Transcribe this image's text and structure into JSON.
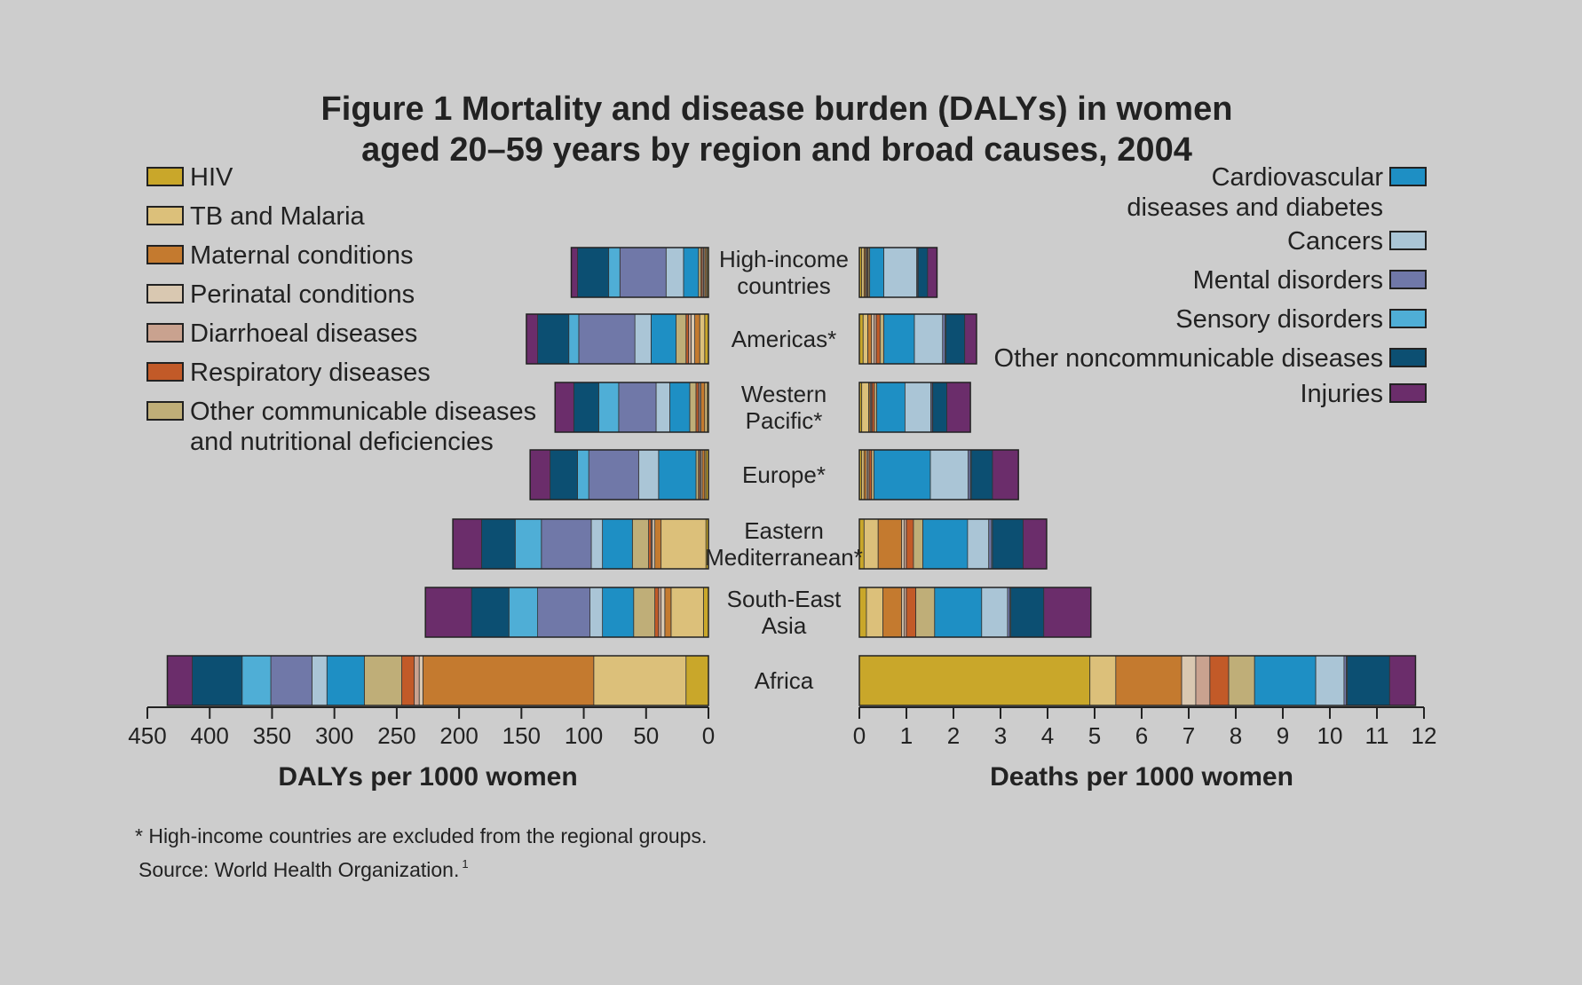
{
  "chart_data": {
    "type": "bar",
    "orientation": "horizontal",
    "stacked": true,
    "title_lines": [
      "Figure 1 Mortality and disease burden (DALYs) in women",
      "aged 20–59 years by region and broad causes, 2004"
    ],
    "categories": [
      [
        "High-income",
        "countries"
      ],
      [
        "Americas*"
      ],
      [
        "Western",
        "Pacific*"
      ],
      [
        "Europe*"
      ],
      [
        "Eastern",
        "Mediterranean*"
      ],
      [
        "South-East",
        "Asia"
      ],
      [
        "Africa"
      ]
    ],
    "causes": [
      {
        "name_lines": [
          "HIV"
        ],
        "color": "#c9a72a"
      },
      {
        "name_lines": [
          "TB and Malaria"
        ],
        "color": "#dcc07a"
      },
      {
        "name_lines": [
          "Maternal conditions"
        ],
        "color": "#c47a2f"
      },
      {
        "name_lines": [
          "Perinatal conditions"
        ],
        "color": "#d9c8b1"
      },
      {
        "name_lines": [
          "Diarrhoeal diseases"
        ],
        "color": "#c9a28f"
      },
      {
        "name_lines": [
          "Respiratory diseases"
        ],
        "color": "#c25a28"
      },
      {
        "name_lines": [
          "Other communicable diseases",
          "and nutritional deficiencies"
        ],
        "color": "#bfae78"
      },
      {
        "name_lines": [
          "Cardiovascular",
          "diseases and diabetes"
        ],
        "color": "#1e8fc4"
      },
      {
        "name_lines": [
          "Cancers"
        ],
        "color": "#aac5d6"
      },
      {
        "name_lines": [
          "Mental disorders"
        ],
        "color": "#7078a8"
      },
      {
        "name_lines": [
          "Sensory disorders"
        ],
        "color": "#4faed6"
      },
      {
        "name_lines": [
          "Other noncommunicable diseases"
        ],
        "color": "#0c4f72"
      },
      {
        "name_lines": [
          "Injuries"
        ],
        "color": "#6b2d6b"
      }
    ],
    "left_panel": {
      "xlabel": "DALYs per 1000 women",
      "xlim": [
        450,
        0
      ],
      "ticks": [
        450,
        400,
        350,
        300,
        250,
        200,
        150,
        100,
        50,
        0
      ],
      "series": [
        {
          "name": "HIV",
          "values": [
            1,
            3,
            1,
            2,
            2,
            4,
            18
          ]
        },
        {
          "name": "TB and Malaria",
          "values": [
            1,
            4,
            2,
            1,
            36,
            26,
            74
          ]
        },
        {
          "name": "Maternal conditions",
          "values": [
            1,
            4,
            3,
            2,
            5,
            5,
            137
          ]
        },
        {
          "name": "Perinatal conditions",
          "values": [
            1,
            3,
            1,
            1,
            2,
            3,
            3
          ]
        },
        {
          "name": "Diarrhoeal diseases",
          "values": [
            1,
            2,
            1,
            1,
            1,
            2,
            4
          ]
        },
        {
          "name": "Respiratory diseases",
          "values": [
            1,
            2,
            2,
            1,
            2,
            3,
            10
          ]
        },
        {
          "name": "Other communicable diseases",
          "values": [
            2,
            8,
            5,
            2,
            13,
            17,
            30
          ]
        },
        {
          "name": "Cardiovascular diseases and diabetes",
          "values": [
            12,
            20,
            16,
            30,
            24,
            25,
            30
          ]
        },
        {
          "name": "Cancers",
          "values": [
            14,
            13,
            11,
            16,
            9,
            10,
            12
          ]
        },
        {
          "name": "Mental disorders",
          "values": [
            37,
            45,
            30,
            40,
            40,
            42,
            33
          ]
        },
        {
          "name": "Sensory disorders",
          "values": [
            9,
            8,
            16,
            9,
            21,
            23,
            23
          ]
        },
        {
          "name": "Other noncommunicable diseases",
          "values": [
            25,
            25,
            20,
            22,
            27,
            30,
            40
          ]
        },
        {
          "name": "Injuries",
          "values": [
            5,
            9,
            15,
            16,
            23,
            37,
            20
          ]
        }
      ]
    },
    "right_panel": {
      "xlabel": "Deaths per 1000 women",
      "xlim": [
        0,
        12
      ],
      "ticks": [
        0,
        1,
        2,
        3,
        4,
        5,
        6,
        7,
        8,
        9,
        10,
        11,
        12
      ],
      "series": [
        {
          "name": "HIV",
          "values": [
            0.05,
            0.08,
            0.05,
            0.05,
            0.1,
            0.15,
            4.9
          ]
        },
        {
          "name": "TB and Malaria",
          "values": [
            0.05,
            0.1,
            0.15,
            0.05,
            0.3,
            0.35,
            0.55
          ]
        },
        {
          "name": "Maternal conditions",
          "values": [
            0.03,
            0.08,
            0.03,
            0.05,
            0.5,
            0.4,
            1.4
          ]
        },
        {
          "name": "Perinatal conditions",
          "values": [
            0.02,
            0.05,
            0.02,
            0.03,
            0.05,
            0.05,
            0.3
          ]
        },
        {
          "name": "Diarrhoeal diseases",
          "values": [
            0.02,
            0.05,
            0.02,
            0.03,
            0.05,
            0.05,
            0.3
          ]
        },
        {
          "name": "Respiratory diseases",
          "values": [
            0.02,
            0.08,
            0.05,
            0.05,
            0.15,
            0.2,
            0.4
          ]
        },
        {
          "name": "Other communicable diseases",
          "values": [
            0.03,
            0.08,
            0.05,
            0.05,
            0.2,
            0.4,
            0.55
          ]
        },
        {
          "name": "Cardiovascular diseases and diabetes",
          "values": [
            0.3,
            0.65,
            0.6,
            1.2,
            0.95,
            1.0,
            1.3
          ]
        },
        {
          "name": "Cancers",
          "values": [
            0.7,
            0.6,
            0.55,
            0.8,
            0.45,
            0.55,
            0.6
          ]
        },
        {
          "name": "Mental disorders",
          "values": [
            0.02,
            0.05,
            0.03,
            0.05,
            0.06,
            0.05,
            0.05
          ]
        },
        {
          "name": "Sensory disorders",
          "values": [
            0.01,
            0.02,
            0.01,
            0.02,
            0.02,
            0.02,
            0.02
          ]
        },
        {
          "name": "Other noncommunicable diseases",
          "values": [
            0.2,
            0.4,
            0.3,
            0.45,
            0.65,
            0.7,
            0.9
          ]
        },
        {
          "name": "Injuries",
          "values": [
            0.2,
            0.25,
            0.5,
            0.55,
            0.5,
            1.0,
            0.55
          ]
        }
      ]
    },
    "legend_left_range": [
      0,
      7
    ],
    "legend_right_range": [
      7,
      13
    ],
    "grid": false,
    "legend": "top-left and top-right"
  },
  "footnote": "* High-income countries are excluded from the regional groups.",
  "source_text": "Source: World Health Organization.",
  "source_superscript": "1",
  "background_color": "#cdcdcd"
}
